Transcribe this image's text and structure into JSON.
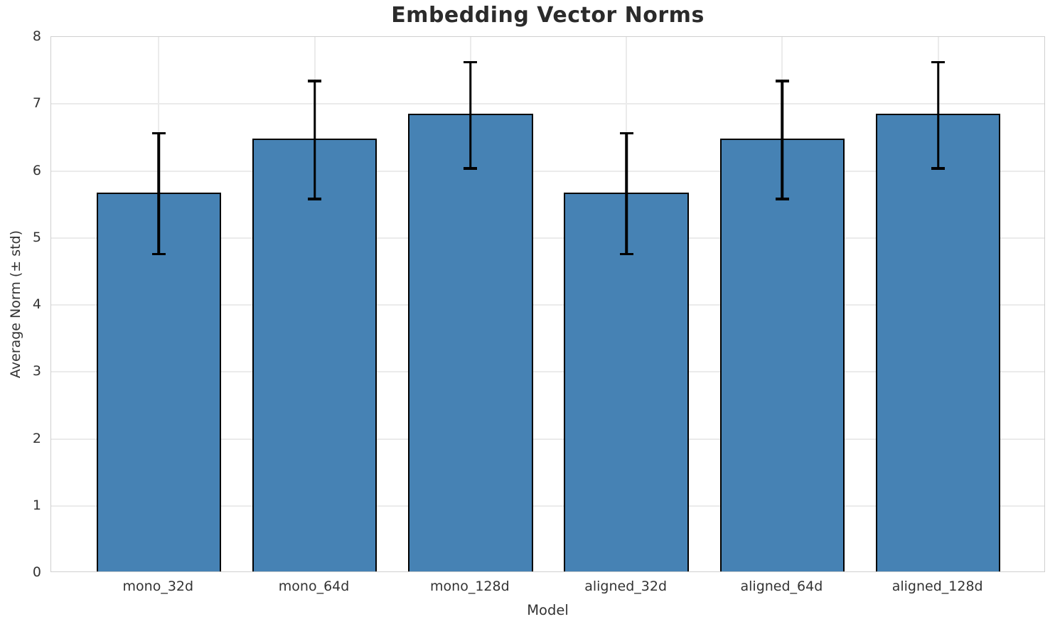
{
  "title": "Embedding Vector Norms",
  "chart_data": {
    "type": "bar",
    "title": "Embedding Vector Norms",
    "xlabel": "Model",
    "ylabel": "Average Norm (± std)",
    "categories": [
      "mono_32d",
      "mono_64d",
      "mono_128d",
      "aligned_32d",
      "aligned_64d",
      "aligned_128d"
    ],
    "series": [
      {
        "name": "Average Norm",
        "values": [
          5.66,
          6.46,
          6.83,
          5.66,
          6.46,
          6.83
        ],
        "errors": [
          0.92,
          0.9,
          0.81,
          0.92,
          0.9,
          0.81
        ]
      }
    ],
    "ylim": [
      0,
      8
    ],
    "yticks": [
      "0",
      "1",
      "2",
      "3",
      "4",
      "5",
      "6",
      "7",
      "8"
    ],
    "grid": "both",
    "legend": "none",
    "colors": {
      "bar_fill": "#4682b4",
      "bar_edge": "#000000",
      "error_bar": "#000000",
      "grid": "#ebebeb",
      "spine": "#cfcfcf",
      "text": "#333333",
      "title_text": "#2b2b2b",
      "background": "#ffffff"
    }
  }
}
